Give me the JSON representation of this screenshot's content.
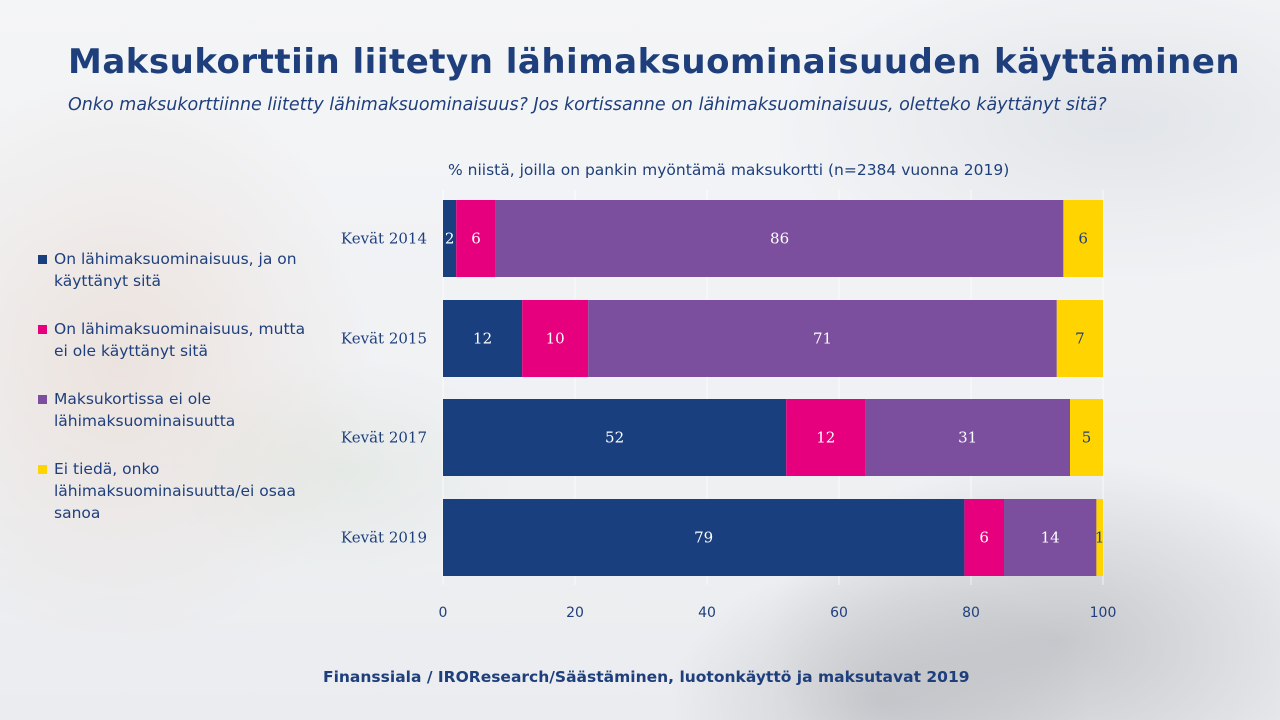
{
  "title": "Maksukorttiin liitetyn lähimaksuominaisuuden käyttäminen",
  "subtitle": "Onko maksukorttiinne liitetty lähimaksuominaisuus? Jos kortissanne on lähimaksuominaisuus, oletteko käyttänyt sitä?",
  "note": "% niistä, joilla on pankin myöntämä maksukortti  (n=2384 vuonna 2019)",
  "source": "Finanssiala  / IROResearch/Säästäminen, luotonkäyttö ja maksutavat 2019",
  "legend": [
    {
      "label": "On lähimaksuominaisuus, ja on käyttänyt sitä",
      "color": "#1a3f7f"
    },
    {
      "label": "On lähimaksuominaisuus, mutta ei ole käyttänyt sitä",
      "color": "#e6007e"
    },
    {
      "label": "Maksukortissa ei ole lähimaksuominaisuutta",
      "color": "#7b4f9d"
    },
    {
      "label": "Ei tiedä, onko lähimaksuominaisuutta/ei osaa sanoa",
      "color": "#ffd400"
    }
  ],
  "chart_data": {
    "type": "bar",
    "orientation": "horizontal",
    "stacked": true,
    "categories": [
      "Kevät 2014",
      "Kevät 2015",
      "Kevät 2017",
      "Kevät 2019"
    ],
    "series": [
      {
        "name": "On lähimaksuominaisuus, ja on käyttänyt sitä",
        "color": "#1a3f7f",
        "values": [
          2,
          12,
          52,
          79
        ]
      },
      {
        "name": "On lähimaksuominaisuus, mutta ei ole käyttänyt sitä",
        "color": "#e6007e",
        "values": [
          6,
          10,
          12,
          6
        ]
      },
      {
        "name": "Maksukortissa ei ole lähimaksuominaisuutta",
        "color": "#7b4f9d",
        "values": [
          86,
          71,
          31,
          14
        ]
      },
      {
        "name": "Ei tiedä, onko lähimaksuominaisuutta/ei osaa sanoa",
        "color": "#ffd400",
        "values": [
          6,
          7,
          5,
          1
        ]
      }
    ],
    "xlim": [
      0,
      100
    ],
    "xticks": [
      0,
      20,
      40,
      60,
      80,
      100
    ],
    "grid": true,
    "legend_position": "left",
    "title": "Maksukorttiin liitetyn lähimaksuominaisuuden käyttäminen",
    "xlabel": "",
    "ylabel": ""
  }
}
